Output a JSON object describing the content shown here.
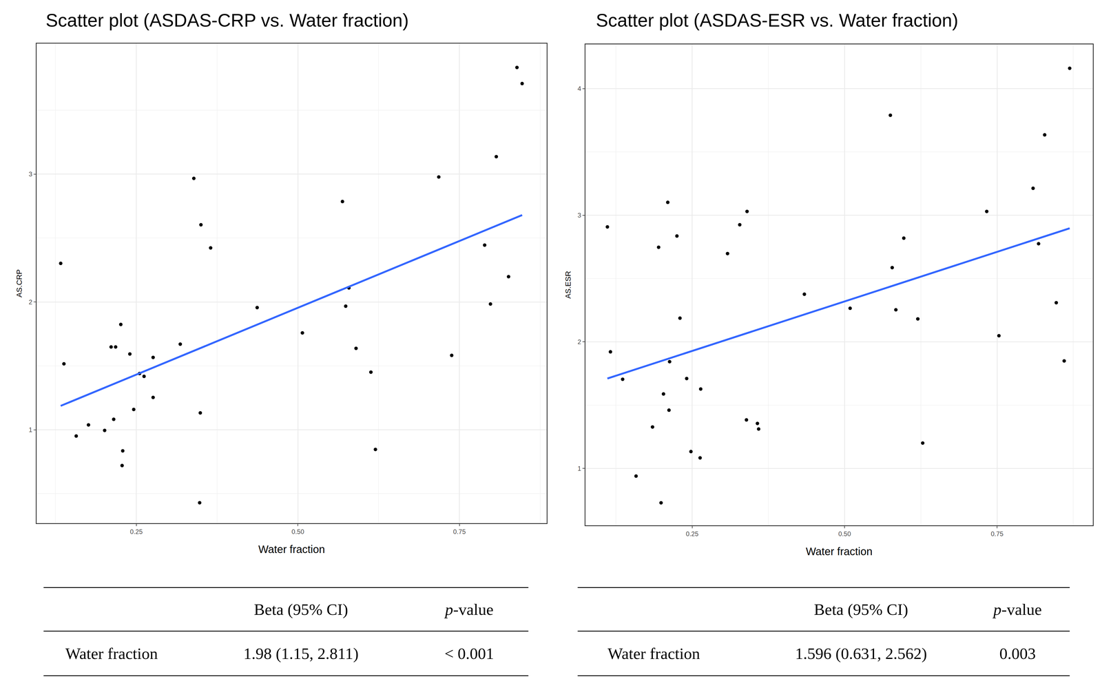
{
  "chart_data": [
    {
      "type": "scatter",
      "title": "Scatter plot (ASDAS-CRP vs. Water fraction)",
      "x_label": "Water fraction",
      "y_label": "AS.CRP",
      "xlim": [
        0.0957,
        0.885
      ],
      "ylim": [
        0.269,
        4.022
      ],
      "xticks": [
        0.25,
        {
          "value": 0.5,
          "label": "0.50"
        },
        0.75
      ],
      "yticks": [
        1,
        2,
        3
      ],
      "grid": true,
      "series": [
        {
          "type": "scatter",
          "color": "#000000",
          "marker": "circle",
          "x": [
            0.133,
            0.138,
            0.157,
            0.176,
            0.201,
            0.211,
            0.218,
            0.215,
            0.226,
            0.229,
            0.228,
            0.24,
            0.246,
            0.255,
            0.262,
            0.276,
            0.276,
            0.318,
            0.339,
            0.35,
            0.349,
            0.365,
            0.437,
            0.507,
            0.569,
            0.579,
            0.574,
            0.59,
            0.613,
            0.62,
            0.718,
            0.738,
            0.789,
            0.798,
            0.807,
            0.826,
            0.839,
            0.847,
            0.348
          ],
          "values": [
            2.302,
            1.516,
            0.951,
            1.038,
            0.995,
            1.648,
            1.648,
            1.082,
            1.824,
            0.835,
            0.72,
            1.593,
            1.159,
            1.44,
            1.418,
            1.566,
            1.253,
            1.67,
            2.967,
            2.604,
            1.132,
            2.423,
            1.956,
            1.758,
            2.786,
            2.11,
            1.967,
            1.637,
            1.451,
            0.846,
            2.978,
            1.582,
            2.445,
            1.984,
            3.137,
            2.198,
            3.835,
            3.709,
            0.429
          ]
        },
        {
          "type": "line",
          "color": "#3366ff",
          "line_style": "solid",
          "x": [
            0.133,
            0.847
          ],
          "values": [
            1.187,
            2.68
          ]
        }
      ],
      "table": {
        "columns": [
          "Beta (95% CI)",
          "p-value"
        ],
        "rows": [
          [
            "Water fraction",
            "1.98 (1.15, 2.811)",
            "< 0.001"
          ]
        ]
      }
    },
    {
      "type": "scatter",
      "title": "Scatter plot (ASDAS-ESR vs. Water fraction)",
      "x_label": "Water fraction",
      "y_label": "AS.ESR",
      "xlim": [
        0.075,
        0.907
      ],
      "ylim": [
        0.55,
        4.35
      ],
      "xticks": [
        0.25,
        {
          "value": 0.5,
          "label": "0.50"
        },
        0.75
      ],
      "yticks": [
        1,
        2,
        3,
        4
      ],
      "grid": true,
      "series": [
        {
          "type": "scatter",
          "color": "#000000",
          "marker": "circle",
          "x": [
            0.111,
            0.116,
            0.136,
            0.158,
            0.185,
            0.195,
            0.199,
            0.203,
            0.21,
            0.212,
            0.213,
            0.225,
            0.23,
            0.241,
            0.248,
            0.263,
            0.264,
            0.308,
            0.328,
            0.34,
            0.339,
            0.357,
            0.359,
            0.434,
            0.509,
            0.575,
            0.578,
            0.584,
            0.597,
            0.62,
            0.628,
            0.733,
            0.753,
            0.809,
            0.818,
            0.828,
            0.847,
            0.86,
            0.869
          ],
          "values": [
            2.908,
            1.921,
            1.704,
            0.939,
            1.327,
            2.747,
            0.728,
            1.588,
            3.102,
            1.46,
            1.843,
            2.836,
            2.187,
            1.71,
            1.133,
            1.083,
            1.627,
            2.697,
            2.925,
            3.03,
            1.383,
            1.355,
            1.311,
            2.376,
            2.265,
            3.79,
            2.586,
            2.253,
            2.819,
            2.181,
            1.2,
            3.03,
            2.048,
            3.213,
            2.775,
            3.635,
            2.309,
            1.849,
            4.161
          ]
        },
        {
          "type": "line",
          "color": "#3366ff",
          "line_style": "solid",
          "x": [
            0.111,
            0.869
          ],
          "values": [
            1.71,
            2.897
          ]
        }
      ],
      "table": {
        "columns": [
          "Beta (95% CI)",
          "p-value"
        ],
        "rows": [
          [
            "Water fraction",
            "1.596 (0.631, 2.562)",
            "0.003"
          ]
        ]
      }
    }
  ]
}
